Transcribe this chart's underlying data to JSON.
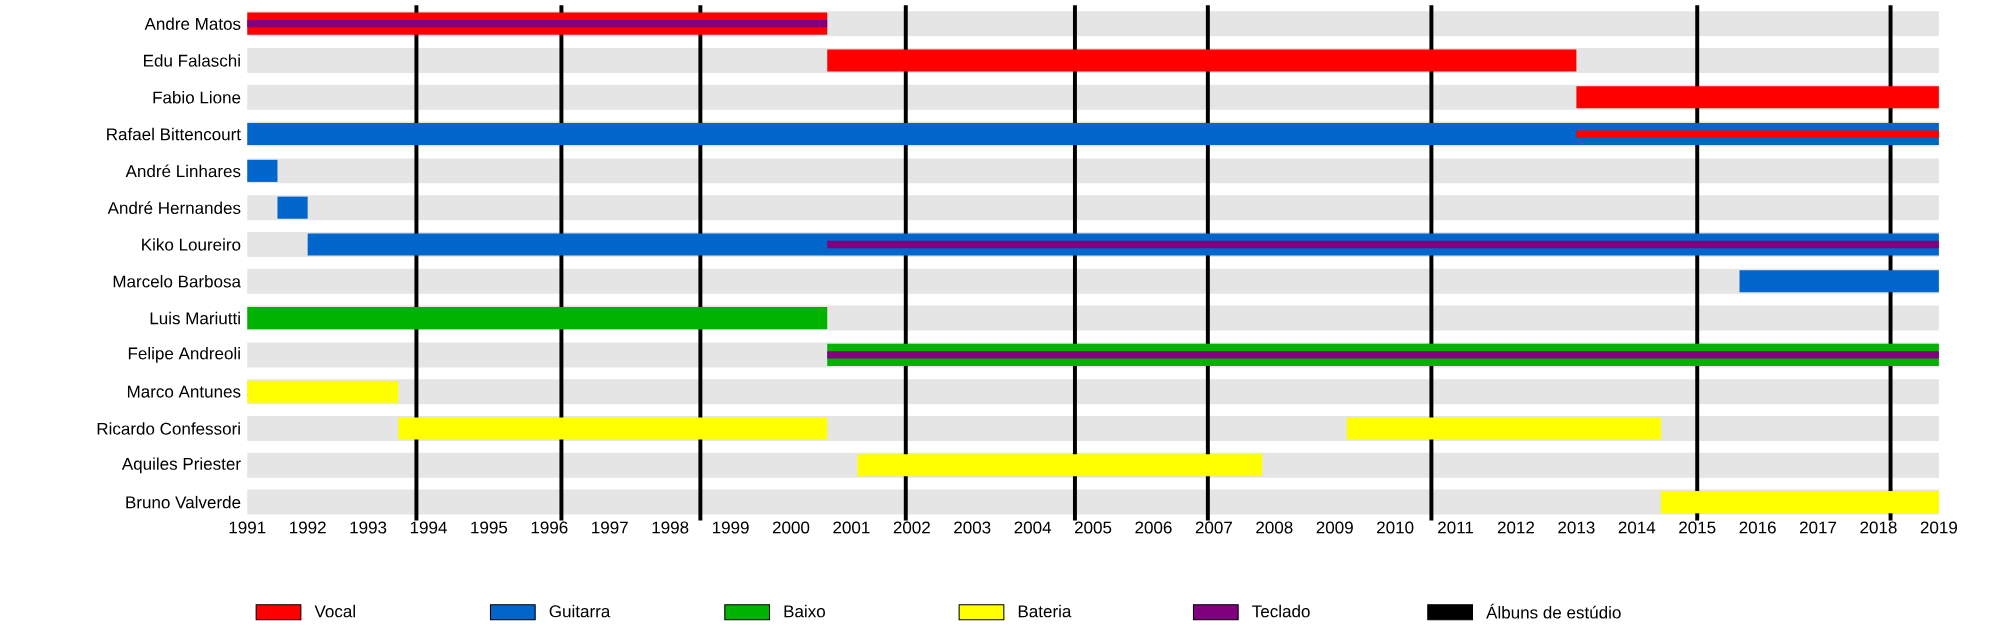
{
  "chart_data": {
    "type": "bar",
    "orientation": "horizontal",
    "categories": [
      "Andre Matos",
      "Edu Falaschi",
      "Fabio Lione",
      "Rafael Bittencourt",
      "André Linhares",
      "André Hernandes",
      "Kiko Loureiro",
      "Marcelo Barbosa",
      "Luis Mariutti",
      "Felipe Andreoli",
      "Marco Antunes",
      "Ricardo Confessori",
      "Aquiles Priester",
      "Bruno Valverde"
    ],
    "series": [
      {
        "name": "Vocal",
        "color": "#ff0000",
        "values": [
          9.6,
          12.4,
          6,
          null,
          null,
          null,
          null,
          null,
          null,
          null,
          null,
          null,
          null,
          null
        ],
        "base": [
          1991,
          2000.6,
          2013,
          null,
          null,
          null,
          null,
          null,
          null,
          null,
          null,
          null,
          null,
          null
        ]
      },
      {
        "name": "Guitarra",
        "color": "#0066cc",
        "values": [
          null,
          null,
          null,
          28,
          0.5,
          0.5,
          27,
          3.3,
          null,
          null,
          null,
          null,
          null,
          null
        ],
        "base": [
          null,
          null,
          null,
          1991,
          1991,
          1991.5,
          1992,
          2015.7,
          null,
          null,
          null,
          null,
          null,
          null
        ]
      },
      {
        "name": "Baixo",
        "color": "#00b300",
        "values": [
          null,
          null,
          null,
          null,
          null,
          null,
          null,
          null,
          9.6,
          18.4,
          null,
          null,
          null,
          null
        ],
        "base": [
          null,
          null,
          null,
          null,
          null,
          null,
          null,
          null,
          1991,
          2000.6,
          null,
          null,
          null,
          null
        ]
      },
      {
        "name": "Bateria",
        "color": "#ffff00",
        "values": [
          null,
          null,
          null,
          null,
          null,
          null,
          null,
          null,
          null,
          null,
          2.5,
          7.1,
          6.7,
          4.6
        ],
        "base": [
          null,
          null,
          null,
          null,
          null,
          null,
          null,
          null,
          null,
          null,
          1991,
          1993.5,
          2001.1,
          2014.4
        ]
      },
      {
        "color": "#ffff00",
        "values": [
          null,
          null,
          null,
          null,
          null,
          null,
          null,
          null,
          null,
          null,
          null,
          5.2,
          null,
          null
        ],
        "base": [
          null,
          null,
          null,
          null,
          null,
          null,
          null,
          null,
          null,
          null,
          null,
          2009.2,
          null,
          null
        ]
      },
      {
        "name": "Teclado",
        "color": "#800080",
        "values": [
          9.6,
          null,
          null,
          null,
          null,
          null,
          18.4,
          null,
          null,
          18.4,
          null,
          null,
          null,
          null
        ],
        "base": [
          1991,
          null,
          null,
          null,
          null,
          null,
          2000.6,
          null,
          null,
          2000.6,
          null,
          null,
          null,
          null
        ]
      },
      {
        "color": "#ff0000",
        "values": [
          null,
          null,
          null,
          6,
          null,
          null,
          null,
          null,
          null,
          null,
          null,
          null,
          null,
          null
        ],
        "base": [
          null,
          null,
          null,
          2013,
          null,
          null,
          null,
          null,
          null,
          null,
          null,
          null,
          null,
          null
        ]
      }
    ],
    "xlim": [
      1991,
      2019
    ],
    "xticks": [
      1991,
      1992,
      1993,
      1994,
      1995,
      1996,
      1997,
      1998,
      1999,
      2000,
      2001,
      2002,
      2003,
      2004,
      2005,
      2006,
      2007,
      2008,
      2009,
      2010,
      2011,
      2012,
      2013,
      2014,
      2015,
      2016,
      2017,
      2018,
      2019
    ],
    "ref_lines": [
      {
        "axis": "x",
        "value": 1993.8,
        "color": "#000000",
        "label": "Álbuns de estúdio"
      },
      {
        "axis": "x",
        "value": 1996.2,
        "color": "#000000"
      },
      {
        "axis": "x",
        "value": 1998.5,
        "color": "#000000"
      },
      {
        "axis": "x",
        "value": 2001.9,
        "color": "#000000"
      },
      {
        "axis": "x",
        "value": 2004.7,
        "color": "#000000"
      },
      {
        "axis": "x",
        "value": 2006.9,
        "color": "#000000"
      },
      {
        "axis": "x",
        "value": 2010.6,
        "color": "#000000"
      },
      {
        "axis": "x",
        "value": 2015.0,
        "color": "#000000"
      },
      {
        "axis": "x",
        "value": 2018.2,
        "color": "#000000"
      }
    ],
    "grid": "y",
    "legend": "bottom"
  }
}
